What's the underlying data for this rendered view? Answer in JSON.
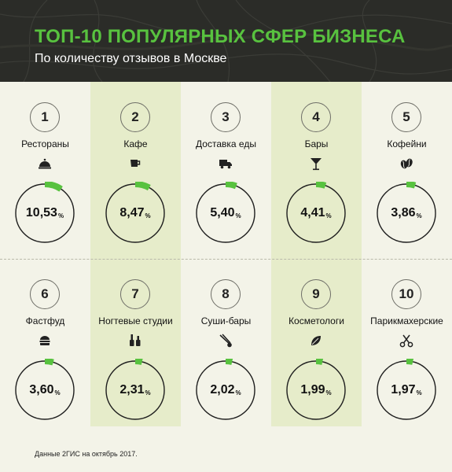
{
  "header": {
    "title": "ТОП-10 ПОПУЛЯРНЫХ СФЕР БИЗНЕСА",
    "subtitle": "По количеству отзывов в Москве"
  },
  "footer": {
    "source": "Данные 2ГИС на октябрь 2017."
  },
  "colors": {
    "accent": "#58c23f",
    "header_bg": "#2b2c28",
    "band_bg": "#e6ecca",
    "page_bg": "#f3f3e8"
  },
  "chart_data": {
    "type": "bar",
    "title": "ТОП-10 ПОПУЛЯРНЫХ СФЕР БИЗНЕСА",
    "subtitle": "По количеству отзывов в Москве",
    "unit": "%",
    "categories": [
      "Рестораны",
      "Кафе",
      "Доставка еды",
      "Бары",
      "Кофейни",
      "Фастфуд",
      "Ногтевые студии",
      "Суши-бары",
      "Косметологи",
      "Парикмахерские"
    ],
    "values": [
      10.53,
      8.47,
      5.4,
      4.41,
      3.86,
      3.6,
      2.31,
      2.02,
      1.99,
      1.97
    ],
    "items": [
      {
        "rank": "1",
        "label": "Рестораны",
        "value": 10.53,
        "display": "10,53",
        "icon": "cloche-icon"
      },
      {
        "rank": "2",
        "label": "Кафе",
        "value": 8.47,
        "display": "8,47",
        "icon": "coffee-cup-icon"
      },
      {
        "rank": "3",
        "label": "Доставка еды",
        "value": 5.4,
        "display": "5,40",
        "icon": "delivery-truck-icon"
      },
      {
        "rank": "4",
        "label": "Бары",
        "value": 4.41,
        "display": "4,41",
        "icon": "cocktail-glass-icon"
      },
      {
        "rank": "5",
        "label": "Кофейни",
        "value": 3.86,
        "display": "3,86",
        "icon": "coffee-bean-icon"
      },
      {
        "rank": "6",
        "label": "Фастфуд",
        "value": 3.6,
        "display": "3,60",
        "icon": "burger-icon"
      },
      {
        "rank": "7",
        "label": "Ногтевые студии",
        "value": 2.31,
        "display": "2,31",
        "icon": "nail-polish-icon"
      },
      {
        "rank": "8",
        "label": "Суши-бары",
        "value": 2.02,
        "display": "2,02",
        "icon": "chopsticks-icon"
      },
      {
        "rank": "9",
        "label": "Косметологи",
        "value": 1.99,
        "display": "1,99",
        "icon": "leaf-icon"
      },
      {
        "rank": "10",
        "label": "Парикмахерские",
        "value": 1.97,
        "display": "1,97",
        "icon": "scissors-icon"
      }
    ]
  }
}
